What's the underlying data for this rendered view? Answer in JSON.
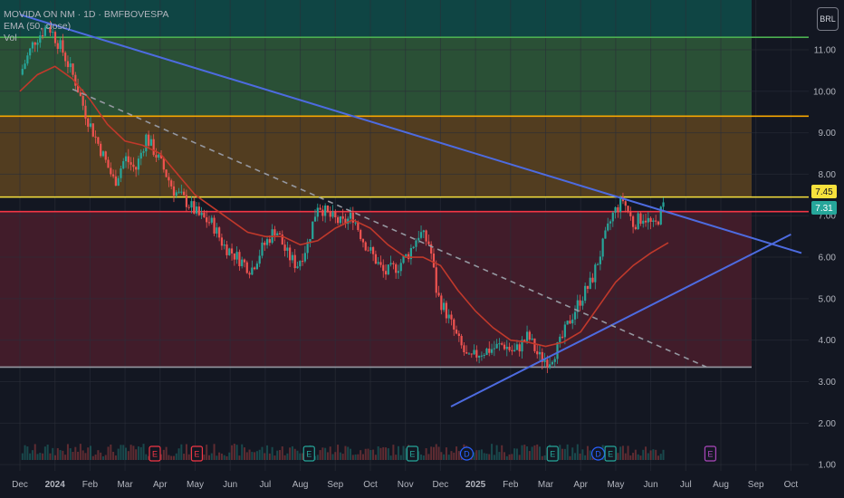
{
  "legend": {
    "symbol": "MOVIDA ON NM · 1D · BMFBOVESPA",
    "indicator": "EMA (50, close)",
    "volume": "Vol"
  },
  "currency_button": "BRL",
  "price_labels": {
    "label_high": "7.45",
    "label_last": "7.31"
  },
  "colors": {
    "background": "#131722",
    "candle_up": "#26a69a",
    "candle_down": "#ef5350",
    "ema": "#c0392b",
    "trendline": "#4d6be0",
    "green_level": "#4caf50",
    "orange_level": "#f7a600",
    "yellow_level": "#f7e13c",
    "red_level": "#f23645",
    "gray_level": "#9598a1"
  },
  "chart_data": {
    "type": "candlestick",
    "title": "",
    "x_ticks": [
      "Dec",
      "2024",
      "Feb",
      "Mar",
      "Apr",
      "May",
      "Jun",
      "Jul",
      "Aug",
      "Sep",
      "Oct",
      "Nov",
      "Dec",
      "2025",
      "Feb",
      "Mar",
      "Apr",
      "May",
      "Jun",
      "Jul",
      "Aug",
      "Sep",
      "Oct"
    ],
    "y_ticks": [
      "11.00",
      "10.00",
      "9.00",
      "8.00",
      "7.00",
      "6.00",
      "5.00",
      "4.00",
      "3.00",
      "2.00",
      "1.00"
    ],
    "ylim": [
      0.85,
      12.2
    ],
    "xlim": [
      0,
      22.3
    ],
    "horizontal_levels": [
      {
        "name": "green",
        "price": 11.3
      },
      {
        "name": "orange",
        "price": 9.4
      },
      {
        "name": "yellow",
        "price": 7.45
      },
      {
        "name": "red",
        "price": 7.1
      },
      {
        "name": "gray",
        "price": 3.35
      }
    ],
    "zones": [
      {
        "from": 11.3,
        "to": 12.2,
        "color": "#0f4d4a"
      },
      {
        "from": 9.4,
        "to": 11.3,
        "color": "#2f5a3a"
      },
      {
        "from": 7.45,
        "to": 9.4,
        "color": "#5e4420"
      },
      {
        "from": 3.35,
        "to": 7.1,
        "color": "#4a1d2c"
      }
    ],
    "trendlines": [
      {
        "name": "descending-resistance",
        "x1": 0,
        "y1": 11.85,
        "x2": 22.3,
        "y2": 6.1,
        "style": "solid"
      },
      {
        "name": "ascending-support",
        "x1": 12.3,
        "y1": 2.4,
        "x2": 22.0,
        "y2": 6.55,
        "style": "solid"
      },
      {
        "name": "dashed-midline",
        "x1": 1.5,
        "y1": 10.05,
        "x2": 19.6,
        "y2": 3.35,
        "style": "dashed"
      }
    ],
    "price_path": [
      [
        0.0,
        10.4
      ],
      [
        0.4,
        11.2
      ],
      [
        0.8,
        11.6
      ],
      [
        1.2,
        11.0
      ],
      [
        1.6,
        10.2
      ],
      [
        1.9,
        9.4
      ],
      [
        2.3,
        8.6
      ],
      [
        2.7,
        7.8
      ],
      [
        3.0,
        8.4
      ],
      [
        3.3,
        8.1
      ],
      [
        3.6,
        8.9
      ],
      [
        4.0,
        8.3
      ],
      [
        4.4,
        7.6
      ],
      [
        4.8,
        7.3
      ],
      [
        5.1,
        7.0
      ],
      [
        5.5,
        6.8
      ],
      [
        5.8,
        6.3
      ],
      [
        6.2,
        6.0
      ],
      [
        6.6,
        5.7
      ],
      [
        6.9,
        6.2
      ],
      [
        7.3,
        6.7
      ],
      [
        7.6,
        6.1
      ],
      [
        7.9,
        5.8
      ],
      [
        8.2,
        6.3
      ],
      [
        8.5,
        7.3
      ],
      [
        8.8,
        7.0
      ],
      [
        9.2,
        6.8
      ],
      [
        9.5,
        7.0
      ],
      [
        9.8,
        6.4
      ],
      [
        10.1,
        6.0
      ],
      [
        10.4,
        5.6
      ],
      [
        10.8,
        5.8
      ],
      [
        11.1,
        6.1
      ],
      [
        11.4,
        6.6
      ],
      [
        11.7,
        6.3
      ],
      [
        11.9,
        5.1
      ],
      [
        12.2,
        4.6
      ],
      [
        12.5,
        4.0
      ],
      [
        12.8,
        3.5
      ],
      [
        13.1,
        3.7
      ],
      [
        13.5,
        3.8
      ],
      [
        13.8,
        3.9
      ],
      [
        14.1,
        3.7
      ],
      [
        14.5,
        4.1
      ],
      [
        14.8,
        3.6
      ],
      [
        15.1,
        3.5
      ],
      [
        15.4,
        3.9
      ],
      [
        15.7,
        4.5
      ],
      [
        16.0,
        5.0
      ],
      [
        16.3,
        5.4
      ],
      [
        16.6,
        6.2
      ],
      [
        16.9,
        7.0
      ],
      [
        17.2,
        7.4
      ],
      [
        17.5,
        6.8
      ],
      [
        17.8,
        7.0
      ],
      [
        18.1,
        6.7
      ],
      [
        18.4,
        7.31
      ]
    ],
    "ema_50": [
      [
        0.0,
        10.0
      ],
      [
        0.5,
        10.4
      ],
      [
        1.0,
        10.6
      ],
      [
        1.5,
        10.3
      ],
      [
        2.0,
        9.8
      ],
      [
        2.5,
        9.2
      ],
      [
        3.0,
        8.8
      ],
      [
        3.5,
        8.7
      ],
      [
        4.0,
        8.5
      ],
      [
        4.5,
        8.0
      ],
      [
        5.0,
        7.5
      ],
      [
        5.5,
        7.2
      ],
      [
        6.0,
        6.9
      ],
      [
        6.5,
        6.6
      ],
      [
        7.0,
        6.5
      ],
      [
        7.5,
        6.5
      ],
      [
        8.0,
        6.3
      ],
      [
        8.5,
        6.4
      ],
      [
        9.0,
        6.7
      ],
      [
        9.5,
        6.9
      ],
      [
        10.0,
        6.7
      ],
      [
        10.5,
        6.3
      ],
      [
        11.0,
        6.0
      ],
      [
        11.5,
        6.0
      ],
      [
        12.0,
        5.8
      ],
      [
        12.5,
        5.2
      ],
      [
        13.0,
        4.7
      ],
      [
        13.5,
        4.3
      ],
      [
        14.0,
        4.0
      ],
      [
        14.5,
        3.95
      ],
      [
        15.0,
        3.85
      ],
      [
        15.5,
        3.95
      ],
      [
        16.0,
        4.2
      ],
      [
        16.5,
        4.8
      ],
      [
        17.0,
        5.4
      ],
      [
        17.5,
        5.8
      ],
      [
        18.0,
        6.1
      ],
      [
        18.5,
        6.35
      ]
    ],
    "event_markers": [
      {
        "label": "E",
        "x": 3.85,
        "color": "#f23645"
      },
      {
        "label": "E",
        "x": 5.05,
        "color": "#f23645"
      },
      {
        "label": "E",
        "x": 8.25,
        "color": "#26a69a"
      },
      {
        "label": "E",
        "x": 11.2,
        "color": "#26a69a"
      },
      {
        "label": "D",
        "x": 12.75,
        "color": "#2962ff"
      },
      {
        "label": "E",
        "x": 15.2,
        "color": "#26a69a"
      },
      {
        "label": "D",
        "x": 16.5,
        "color": "#2962ff"
      },
      {
        "label": "E",
        "x": 16.85,
        "color": "#26a69a"
      },
      {
        "label": "E",
        "x": 19.7,
        "color": "#ab47bc"
      }
    ]
  }
}
